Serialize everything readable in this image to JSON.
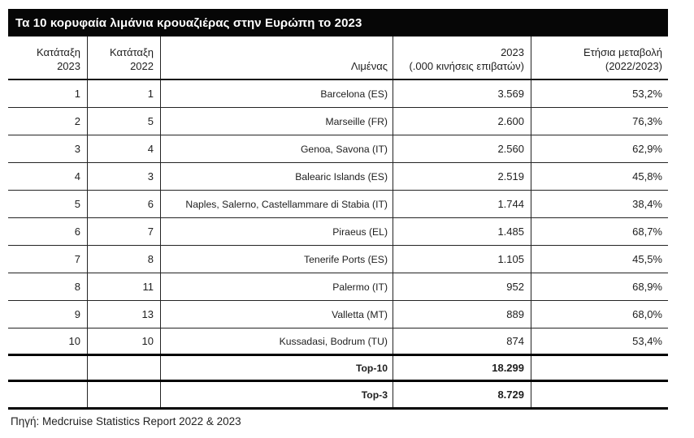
{
  "title": "Τα 10 κορυφαία λιμάνια κρουαζιέρας στην Ευρώπη το 2023",
  "table": {
    "headers": [
      {
        "line1": "Κατάταξη",
        "line2": "2023"
      },
      {
        "line1": "Κατάταξη",
        "line2": "2022"
      },
      {
        "line1": "",
        "line2": "Λιμένας"
      },
      {
        "line1": "2023",
        "line2": "(.000 κινήσεις επιβατών)"
      },
      {
        "line1": "Ετήσια μεταβολή",
        "line2": "(2022/2023)"
      }
    ],
    "rows": [
      {
        "rank2023": "1",
        "rank2022": "1",
        "port": "Barcelona (ES)",
        "pax": "3.569",
        "change": "53,2%"
      },
      {
        "rank2023": "2",
        "rank2022": "5",
        "port": "Marseille (FR)",
        "pax": "2.600",
        "change": "76,3%"
      },
      {
        "rank2023": "3",
        "rank2022": "4",
        "port": "Genoa, Savona (IT)",
        "pax": "2.560",
        "change": "62,9%"
      },
      {
        "rank2023": "4",
        "rank2022": "3",
        "port": "Balearic Islands (ES)",
        "pax": "2.519",
        "change": "45,8%"
      },
      {
        "rank2023": "5",
        "rank2022": "6",
        "port": "Naples, Salerno, Castellammare di Stabia (IT)",
        "pax": "1.744",
        "change": "38,4%"
      },
      {
        "rank2023": "6",
        "rank2022": "7",
        "port": "Piraeus (EL)",
        "pax": "1.485",
        "change": "68,7%"
      },
      {
        "rank2023": "7",
        "rank2022": "8",
        "port": "Tenerife Ports (ES)",
        "pax": "1.105",
        "change": "45,5%"
      },
      {
        "rank2023": "8",
        "rank2022": "11",
        "port": "Palermo (IT)",
        "pax": "952",
        "change": "68,9%"
      },
      {
        "rank2023": "9",
        "rank2022": "13",
        "port": "Valletta (MT)",
        "pax": "889",
        "change": "68,0%"
      },
      {
        "rank2023": "10",
        "rank2022": "10",
        "port": "Kussadasi, Bodrum (TU)",
        "pax": "874",
        "change": "53,4%"
      }
    ],
    "totals": [
      {
        "label": "Top-10",
        "pax": "18.299"
      },
      {
        "label": "Top-3",
        "pax": "8.729"
      }
    ]
  },
  "source": "Πηγή: Medcruise Statistics Report 2022 & 2023",
  "colors": {
    "title_bar_bg": "#060606",
    "title_text": "#ffffff",
    "body_text": "#1e1e1e",
    "rule": "#242424"
  }
}
